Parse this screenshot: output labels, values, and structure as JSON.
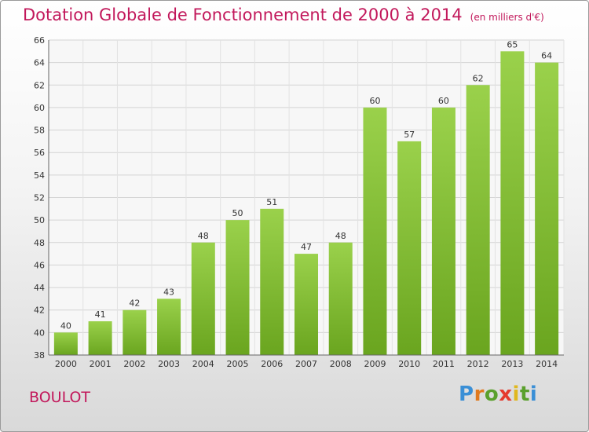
{
  "header": {
    "title": "Dotation Globale de Fonctionnement de 2000 à 2014",
    "unit": "(en milliers d'€)"
  },
  "commune": "BOULOT",
  "logo": {
    "parts": [
      "P",
      "r",
      "o",
      "x",
      "i",
      "t",
      "i"
    ],
    "colors": [
      "#3a8fd6",
      "#e07a1f",
      "#5aa02c",
      "#e53a2e",
      "#e0b81f"
    ]
  },
  "chart_data": {
    "type": "bar",
    "title": "Dotation Globale de Fonctionnement de 2000 à 2014",
    "subtitle": "(en milliers d'€)",
    "categories": [
      "2000",
      "2001",
      "2002",
      "2003",
      "2004",
      "2005",
      "2006",
      "2007",
      "2008",
      "2009",
      "2010",
      "2011",
      "2012",
      "2013",
      "2014"
    ],
    "values": [
      40,
      41,
      42,
      43,
      48,
      50,
      51,
      47,
      48,
      60,
      57,
      60,
      62,
      65,
      64
    ],
    "ylim": [
      38,
      66
    ],
    "yticks": [
      38,
      40,
      42,
      44,
      46,
      48,
      50,
      52,
      54,
      56,
      58,
      60,
      62,
      64,
      66
    ],
    "grid": true,
    "bar_color": "#8cc63f",
    "bar_color_dark": "#6aa51f"
  }
}
